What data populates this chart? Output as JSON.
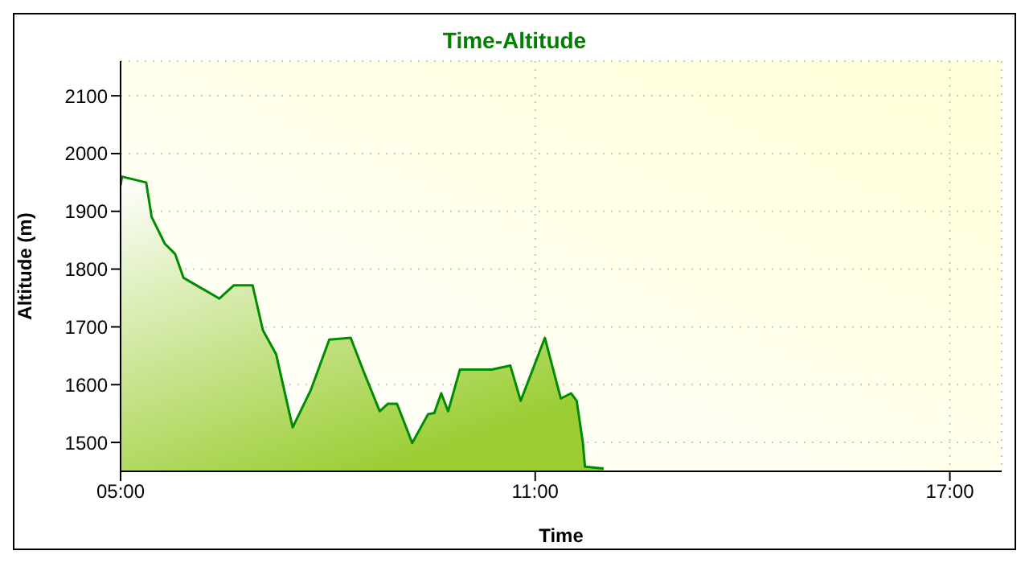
{
  "chart_data": {
    "type": "area",
    "title": "Time-Altitude",
    "xlabel": "Time",
    "ylabel": "Altitude (m)",
    "x": [
      5.0,
      5.02,
      5.37,
      5.45,
      5.64,
      5.79,
      5.91,
      6.14,
      6.43,
      6.64,
      6.91,
      7.06,
      7.25,
      7.49,
      7.75,
      8.02,
      8.33,
      8.52,
      8.75,
      8.87,
      9.0,
      9.22,
      9.45,
      9.54,
      9.64,
      9.74,
      9.91,
      10.37,
      10.64,
      10.79,
      11.14,
      11.37,
      11.52,
      11.6,
      11.69,
      11.72,
      11.99
    ],
    "series": [
      {
        "color": "#008c00",
        "values": [
          1945,
          1960,
          1950,
          1890,
          1844,
          1826,
          1785,
          1769,
          1749,
          1772,
          1772,
          1694,
          1653,
          1526,
          1590,
          1678,
          1681,
          1622,
          1554,
          1567,
          1567,
          1499,
          1549,
          1551,
          1585,
          1554,
          1626,
          1626,
          1633,
          1572,
          1681,
          1576,
          1585,
          1572,
          1499,
          1458,
          1455
        ]
      }
    ],
    "xlim": [
      5,
      17.75
    ],
    "xticks": [
      {
        "value": 5,
        "label": "05:00"
      },
      {
        "value": 11,
        "label": "11:00"
      },
      {
        "value": 17,
        "label": "17:00"
      }
    ],
    "ylim": [
      1450,
      2160
    ],
    "yticks": [
      1500,
      1600,
      1700,
      1800,
      1900,
      2000,
      2100
    ],
    "grid": true,
    "marker": "none",
    "line_style": "solid"
  }
}
